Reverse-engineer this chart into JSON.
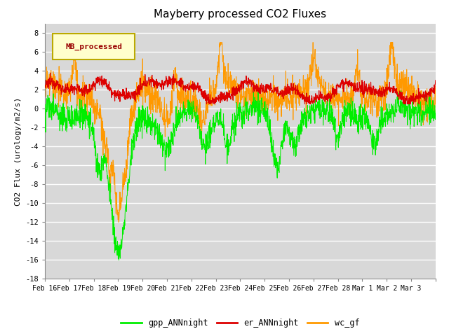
{
  "title": "Mayberry processed CO2 Fluxes",
  "ylabel": "CO2 Flux (urology/m2/s)",
  "ylim": [
    -18,
    9
  ],
  "yticks": [
    -18,
    -16,
    -14,
    -12,
    -10,
    -8,
    -6,
    -4,
    -2,
    0,
    2,
    4,
    6,
    8
  ],
  "xlabels": [
    "Feb 16",
    "Feb 17",
    "Feb 18",
    "Feb 19",
    "Feb 20",
    "Feb 21",
    "Feb 22",
    "Feb 23",
    "Feb 24",
    "Feb 25",
    "Feb 26",
    "Feb 27",
    "Feb 28",
    "Mar 1",
    "Mar 2",
    "Mar 3"
  ],
  "n_points": 1600,
  "n_days": 16,
  "legend_label": "MB_processed",
  "series_labels": [
    "gpp_ANNnight",
    "er_ANNnight",
    "wc_gf"
  ],
  "colors": {
    "gpp": "#00ee00",
    "er": "#dd0000",
    "wc": "#ff9900",
    "legend_bg": "#ffffcc",
    "legend_border": "#bbaa00",
    "legend_text": "#990000",
    "plot_bg": "#d8d8d8",
    "fig_bg": "#ffffff",
    "grid": "#ffffff"
  },
  "title_fontsize": 11,
  "axis_fontsize": 8,
  "tick_fontsize": 7.5
}
